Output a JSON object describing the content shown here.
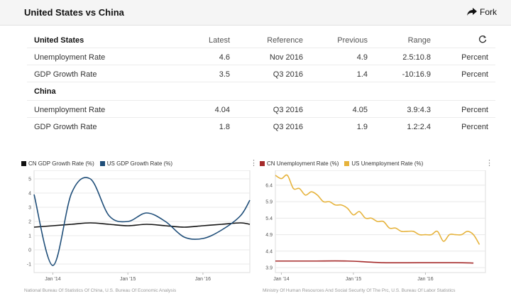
{
  "header": {
    "title": "United States vs China",
    "fork_label": "Fork"
  },
  "table": {
    "columns": {
      "name": "United States",
      "latest": "Latest",
      "reference": "Reference",
      "previous": "Previous",
      "range": "Range"
    },
    "us_rows": [
      {
        "name": "Unemployment Rate",
        "latest": "4.6",
        "reference": "Nov 2016",
        "previous": "4.9",
        "range": "2.5:10.8",
        "unit": "Percent"
      },
      {
        "name": "GDP Growth Rate",
        "latest": "3.5",
        "reference": "Q3 2016",
        "previous": "1.4",
        "range": "-10:16.9",
        "unit": "Percent"
      }
    ],
    "china_label": "China",
    "china_rows": [
      {
        "name": "Unemployment Rate",
        "latest": "4.04",
        "reference": "Q3 2016",
        "previous": "4.05",
        "range": "3.9:4.3",
        "unit": "Percent"
      },
      {
        "name": "GDP Growth Rate",
        "latest": "1.8",
        "reference": "Q3 2016",
        "previous": "1.9",
        "range": "1.2:2.4",
        "unit": "Percent"
      }
    ]
  },
  "chart_data": [
    {
      "type": "line",
      "legend": [
        {
          "name": "CN GDP Growth Rate (%)",
          "color": "#111111"
        },
        {
          "name": "US GDP Growth Rate (%)",
          "color": "#1f4e79"
        }
      ],
      "y_ticks": [
        "5",
        "4",
        "3",
        "2",
        "1",
        "0",
        "-1"
      ],
      "x_ticks": [
        "Jan '14",
        "Jan '15",
        "Jan '16"
      ],
      "ylim": [
        -1.6,
        5.6
      ],
      "xlim": [
        0,
        11.5
      ],
      "x_tick_positions": [
        1,
        5,
        9
      ],
      "grid": true,
      "series": [
        {
          "name": "CN GDP Growth Rate (%)",
          "color": "#111111",
          "x": [
            0,
            1,
            2,
            3,
            4,
            5,
            6,
            7,
            8,
            9,
            10,
            11,
            11.5
          ],
          "values": [
            1.6,
            1.7,
            1.8,
            1.9,
            1.8,
            1.7,
            1.8,
            1.7,
            1.6,
            1.7,
            1.8,
            1.9,
            1.8
          ]
        },
        {
          "name": "US GDP Growth Rate (%)",
          "color": "#1f4e79",
          "x": [
            0,
            1,
            2,
            3,
            4,
            5,
            6,
            7,
            8,
            9,
            10,
            11,
            11.5
          ],
          "values": [
            3.9,
            -1.1,
            4.0,
            5.0,
            2.4,
            2.0,
            2.6,
            2.0,
            0.9,
            0.8,
            1.4,
            2.4,
            3.5
          ]
        }
      ],
      "source": "National Bureau Of Statistics Of China, U.S. Bureau Of Economic Analysis"
    },
    {
      "type": "line",
      "legend": [
        {
          "name": "CN Unemployment Rate (%)",
          "color": "#a52a2a"
        },
        {
          "name": "US Unemployment Rate (%)",
          "color": "#e6b33c"
        }
      ],
      "y_ticks": [
        "6.4",
        "5.9",
        "5.4",
        "4.9",
        "4.4",
        "3.9"
      ],
      "x_ticks": [
        "Jan '14",
        "Jan '15",
        "Jan '16"
      ],
      "ylim": [
        3.75,
        6.85
      ],
      "xlim": [
        0,
        35
      ],
      "x_tick_positions": [
        1,
        13,
        25
      ],
      "grid": true,
      "series": [
        {
          "name": "CN Unemployment Rate (%)",
          "color": "#a52a2a",
          "x": [
            0,
            6,
            12,
            18,
            24,
            30,
            33
          ],
          "values": [
            4.1,
            4.1,
            4.1,
            4.05,
            4.05,
            4.05,
            4.04
          ]
        },
        {
          "name": "US Unemployment Rate (%)",
          "color": "#e6b33c",
          "x": [
            0,
            1,
            2,
            3,
            4,
            5,
            6,
            7,
            8,
            9,
            10,
            11,
            12,
            13,
            14,
            15,
            16,
            17,
            18,
            19,
            20,
            21,
            22,
            23,
            24,
            25,
            26,
            27,
            28,
            29,
            30,
            31,
            32,
            33,
            34
          ],
          "values": [
            6.7,
            6.6,
            6.7,
            6.3,
            6.3,
            6.1,
            6.2,
            6.1,
            5.9,
            5.9,
            5.8,
            5.8,
            5.7,
            5.5,
            5.6,
            5.4,
            5.4,
            5.3,
            5.3,
            5.1,
            5.1,
            5.0,
            5.0,
            5.0,
            4.9,
            4.9,
            4.9,
            5.0,
            4.7,
            4.9,
            4.9,
            4.9,
            5.0,
            4.9,
            4.6
          ]
        }
      ],
      "source": "Ministry Of Human Resources And Social Security Of The Prc, U.S. Bureau Of Labor Statistics"
    }
  ]
}
